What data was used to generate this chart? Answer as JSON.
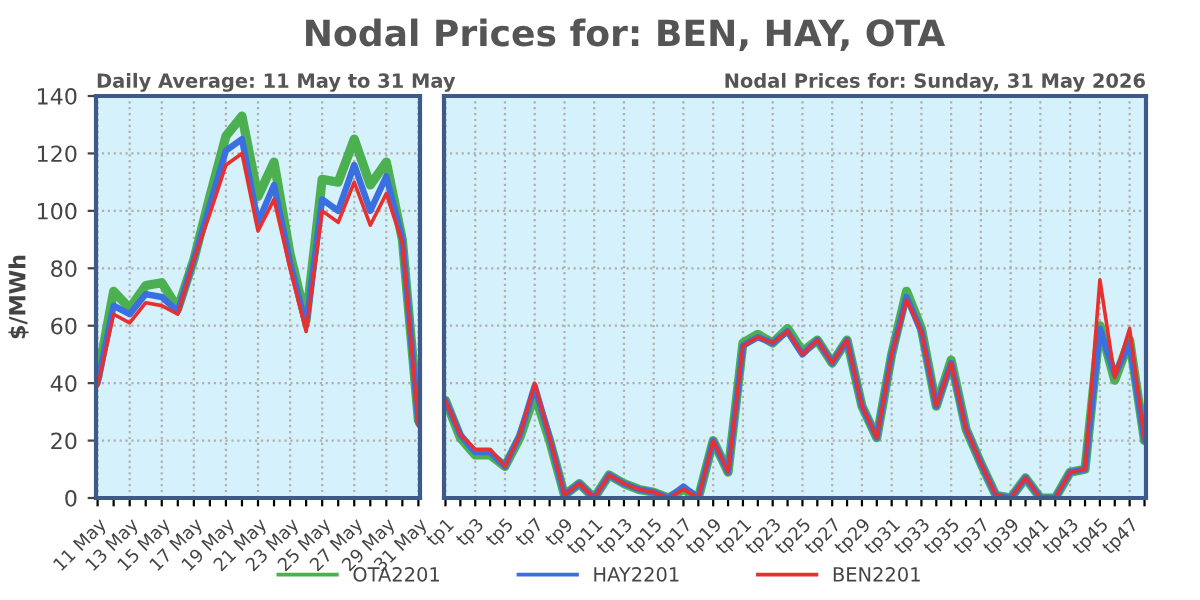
{
  "chart_data": [
    {
      "type": "line",
      "title": "Nodal Prices for: BEN, HAY, OTA",
      "subtitle": "Daily Average: 11 May to 31 May",
      "ylabel": "$/MWh",
      "categories": [
        "11 May",
        null,
        "13 May",
        null,
        "15 May",
        null,
        "17 May",
        null,
        "19 May",
        null,
        "21 May",
        null,
        "23 May",
        null,
        "25 May",
        null,
        "27 May",
        null,
        "29 May",
        null,
        "31 May"
      ],
      "series": [
        {
          "name": "OTA2201",
          "color": "#4caf50",
          "values": [
            42,
            72,
            66,
            74,
            75,
            66,
            83,
            105,
            126,
            133,
            105,
            117,
            85,
            62,
            111,
            110,
            125,
            109,
            117,
            90,
            27
          ]
        },
        {
          "name": "HAY2201",
          "color": "#3b6fe0",
          "values": [
            40,
            67,
            64,
            71,
            70,
            65,
            83,
            102,
            121,
            125,
            96,
            109,
            82,
            60,
            104,
            100,
            116,
            100,
            112,
            90,
            26
          ]
        },
        {
          "name": "BEN2201",
          "color": "#e8312f",
          "values": [
            39,
            64,
            61,
            68,
            67,
            64,
            83,
            99,
            116,
            120,
            93,
            104,
            80,
            58,
            100,
            96,
            110,
            95,
            106,
            89,
            25
          ]
        }
      ],
      "ylim": [
        0,
        140
      ],
      "yticks": [
        0,
        20,
        40,
        60,
        80,
        100,
        120,
        140
      ],
      "grid": true,
      "legend": "bottom"
    },
    {
      "type": "line",
      "subtitle": "Nodal Prices for: Sunday, 31 May 2026",
      "categories": [
        "tp1",
        null,
        "tp3",
        null,
        "tp5",
        null,
        "tp7",
        null,
        "tp9",
        null,
        "tp11",
        null,
        "tp13",
        null,
        "tp15",
        null,
        "tp17",
        null,
        "tp19",
        null,
        "tp21",
        null,
        "tp23",
        null,
        "tp25",
        null,
        "tp27",
        null,
        "tp29",
        null,
        "tp31",
        null,
        "tp33",
        null,
        "tp35",
        null,
        "tp37",
        null,
        "tp39",
        null,
        "tp41",
        null,
        "tp43",
        null,
        "tp45",
        null,
        "tp47",
        null
      ],
      "series": [
        {
          "name": "OTA2201",
          "color": "#4caf50",
          "values": [
            34,
            21,
            15,
            15,
            11,
            21,
            36,
            20,
            1,
            5,
            0,
            8,
            5,
            3,
            2,
            0,
            3,
            0,
            20,
            9,
            54,
            57,
            54,
            59,
            51,
            55,
            47,
            55,
            32,
            21,
            50,
            72,
            59,
            32,
            48,
            24,
            12,
            1,
            0,
            7,
            0,
            0,
            9,
            10,
            60,
            41,
            55,
            20
          ]
        },
        {
          "name": "HAY2201",
          "color": "#3b6fe0",
          "values": [
            34,
            22,
            16,
            16,
            11,
            22,
            39,
            21,
            1,
            5,
            0,
            8,
            5,
            3,
            2,
            0,
            4,
            0,
            20,
            9,
            53,
            56,
            54,
            58,
            50,
            55,
            47,
            55,
            32,
            21,
            50,
            70,
            58,
            32,
            47,
            24,
            12,
            1,
            0,
            7,
            0,
            0,
            9,
            10,
            59,
            43,
            54,
            20
          ]
        },
        {
          "name": "BEN2201",
          "color": "#e8312f",
          "values": [
            34,
            22,
            17,
            17,
            11,
            22,
            40,
            21,
            1,
            5,
            0,
            8,
            5,
            3,
            2,
            0,
            3,
            0,
            20,
            9,
            53,
            56,
            54,
            58,
            50,
            55,
            47,
            55,
            32,
            21,
            50,
            69,
            58,
            32,
            47,
            24,
            12,
            1,
            0,
            7,
            0,
            0,
            9,
            10,
            76,
            42,
            59,
            20
          ]
        }
      ],
      "ylim": [
        0,
        140
      ],
      "yticks": [
        0,
        20,
        40,
        60,
        80,
        100,
        120,
        140
      ],
      "tick_labels": "x",
      "grid": true,
      "legend": "bottom"
    }
  ]
}
